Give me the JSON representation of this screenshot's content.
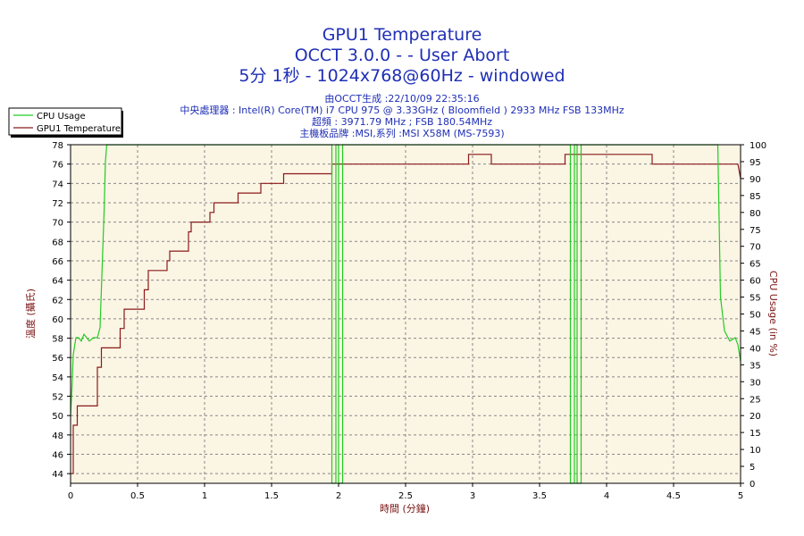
{
  "chart_data": {
    "type": "line",
    "title_lines": [
      "GPU1 Temperature",
      "OCCT 3.0.0 -  - User Abort",
      "5分 1秒 - 1024x768@60Hz - windowed"
    ],
    "info_lines": [
      "由OCCT生成 :22/10/09 22:35:16",
      "中央處理器 : Intel(R) Core(TM) i7 CPU 975 @ 3.33GHz ( Bloomfield ) 2933 MHz FSB 133MHz",
      "超頻 : 3971.79 MHz ; FSB 180.54MHz",
      "主機板品牌 :MSI,系列 :MSI X58M (MS-7593)"
    ],
    "xlabel": "時間 (分鐘)",
    "ylabel_left": "溫度 (攝氏)",
    "ylabel_right": "CPU Usage (in %)",
    "xlim": [
      0,
      5
    ],
    "ylim_left": [
      43,
      78
    ],
    "ylim_right": [
      0,
      100
    ],
    "x_ticks": [
      "0",
      "0.5",
      "1",
      "1.5",
      "2",
      "2.5",
      "3",
      "3.5",
      "4",
      "4.5",
      "5"
    ],
    "y_left_ticks": [
      "44",
      "46",
      "48",
      "50",
      "52",
      "54",
      "56",
      "58",
      "60",
      "62",
      "64",
      "66",
      "68",
      "70",
      "72",
      "74",
      "76",
      "78"
    ],
    "y_right_ticks": [
      "0",
      "5",
      "10",
      "15",
      "20",
      "25",
      "30",
      "35",
      "40",
      "45",
      "50",
      "55",
      "60",
      "65",
      "70",
      "75",
      "80",
      "85",
      "90",
      "95",
      "100"
    ],
    "grid": true,
    "legend": {
      "position": "top-left",
      "entries": [
        {
          "name": "CPU Usage",
          "color": "#22cc22"
        },
        {
          "name": "GPU1 Temperature",
          "color": "#8b1a1a"
        }
      ]
    },
    "colors": {
      "plot_background": "#fbf5e4",
      "grid": "#888888",
      "cpu_usage": "#22cc22",
      "gpu_temperature": "#8b1a1a",
      "title": "#1f2fb5",
      "axis_label": "#7a1414"
    },
    "series": [
      {
        "name": "GPU1 Temperature",
        "axis": "left",
        "x": [
          0,
          0.02,
          0.02,
          0.05,
          0.05,
          0.07,
          0.07,
          0.2,
          0.2,
          0.23,
          0.23,
          0.37,
          0.37,
          0.4,
          0.4,
          0.55,
          0.55,
          0.58,
          0.58,
          0.72,
          0.72,
          0.74,
          0.74,
          0.88,
          0.88,
          0.9,
          0.9,
          1.04,
          1.04,
          1.07,
          1.07,
          1.2,
          1.2,
          1.25,
          1.25,
          1.37,
          1.37,
          1.42,
          1.42,
          1.56,
          1.56,
          1.59,
          1.59,
          1.93,
          1.93,
          1.95,
          1.95,
          2.95,
          2.95,
          2.97,
          2.97,
          3.12,
          3.12,
          3.14,
          3.14,
          3.69,
          3.69,
          3.72,
          3.72,
          4.32,
          4.32,
          4.34,
          4.34,
          4.98,
          5.0
        ],
        "y": [
          44,
          44,
          49,
          49,
          51,
          51,
          51,
          51,
          55,
          55,
          57,
          57,
          59,
          59,
          61,
          61,
          63,
          63,
          65,
          65,
          66,
          66,
          67,
          67,
          69,
          69,
          70,
          70,
          71,
          71,
          72,
          72,
          72,
          72,
          73,
          73,
          73,
          73,
          74,
          74,
          74,
          74,
          75,
          75,
          75,
          75,
          76,
          76,
          76,
          76,
          77,
          77,
          77,
          77,
          76,
          76,
          77,
          77,
          77,
          77,
          77,
          77,
          76,
          76,
          74.5
        ]
      },
      {
        "name": "CPU Usage",
        "axis": "right",
        "x": [
          0,
          0.01,
          0.02,
          0.04,
          0.06,
          0.08,
          0.1,
          0.12,
          0.14,
          0.17,
          0.2,
          0.22,
          0.25,
          0.26,
          0.27,
          1.95,
          1.95,
          1.98,
          1.98,
          2.0,
          2.0,
          2.03,
          2.03,
          3.73,
          3.73,
          3.76,
          3.76,
          3.78,
          3.78,
          3.81,
          3.81,
          4.83,
          4.85,
          4.88,
          4.92,
          4.96,
          4.98,
          5.0
        ],
        "y": [
          20,
          28,
          38,
          43,
          43,
          42,
          44,
          43,
          42,
          43,
          43,
          46,
          80,
          95,
          100,
          100,
          0,
          0,
          100,
          100,
          0,
          0,
          100,
          100,
          0,
          0,
          100,
          100,
          0,
          0,
          100,
          100,
          55,
          45,
          42,
          43,
          41,
          36
        ]
      }
    ]
  }
}
